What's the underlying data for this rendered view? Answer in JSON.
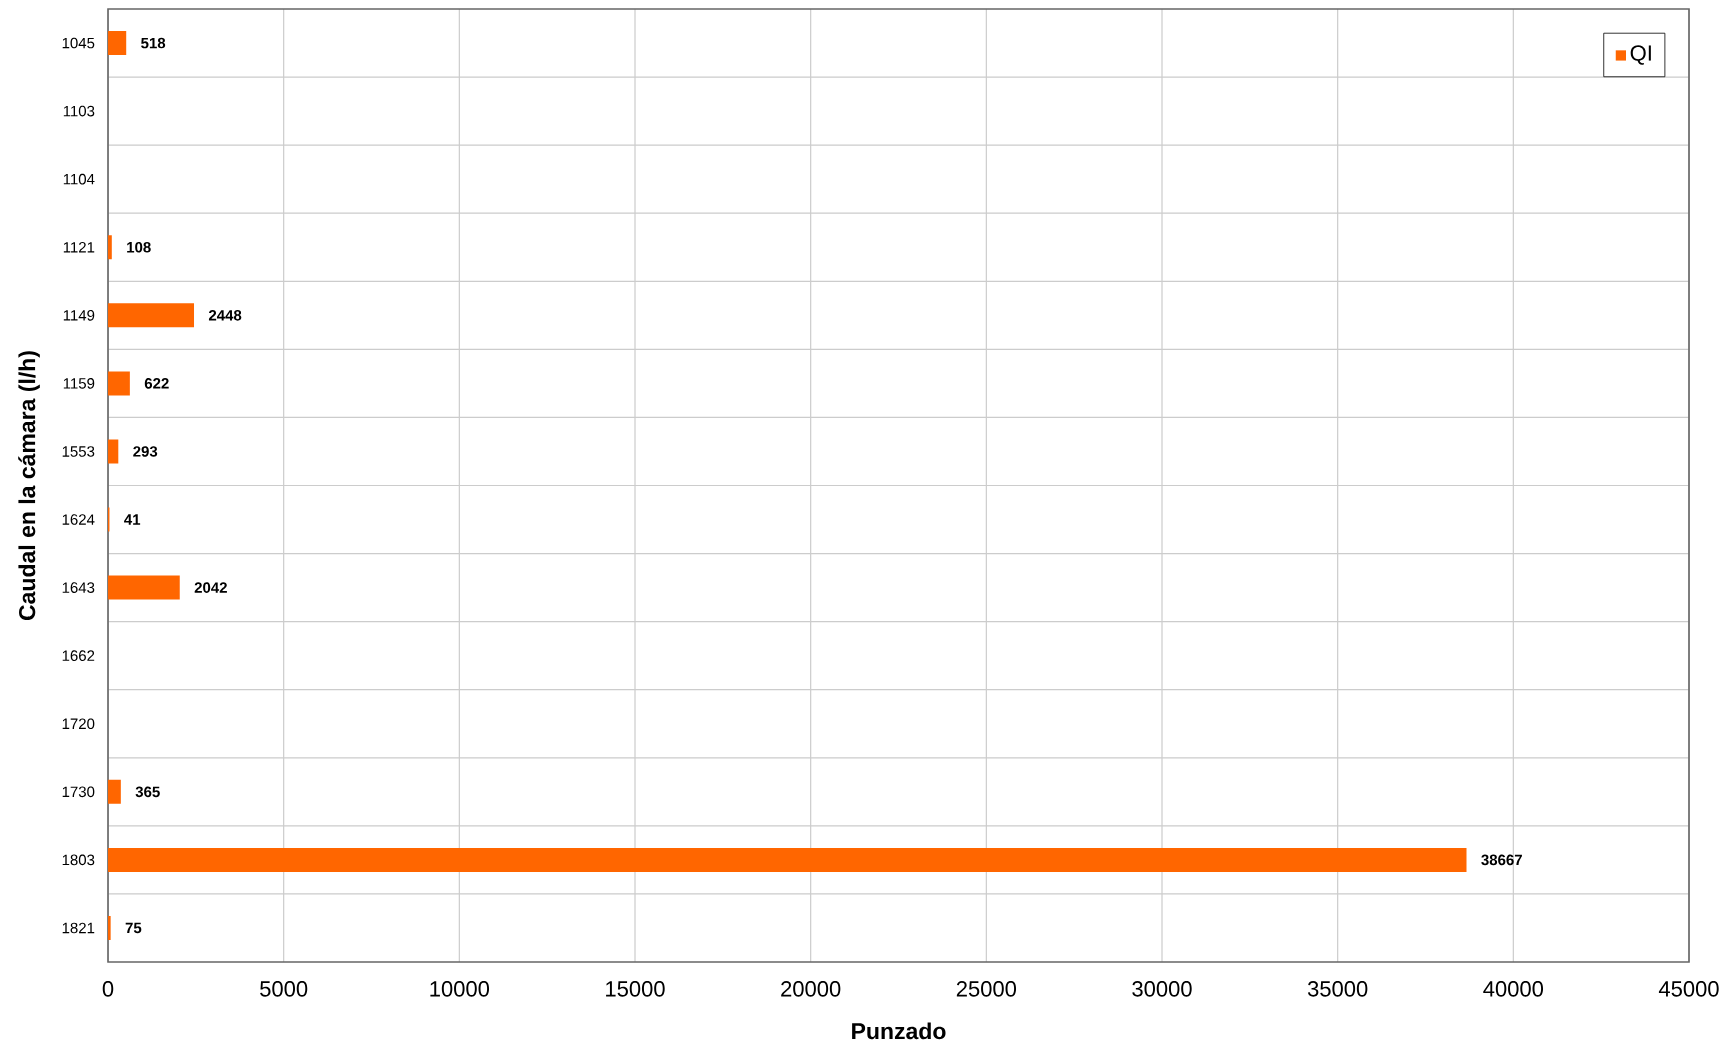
{
  "chart_data": {
    "type": "bar",
    "orientation": "horizontal",
    "xlabel": "Punzado",
    "ylabel": "Caudal en la cámara (l/h)",
    "categories": [
      "1045",
      "1103",
      "1104",
      "1121",
      "1149",
      "1159",
      "1553",
      "1624",
      "1643",
      "1662",
      "1720",
      "1730",
      "1803",
      "1821"
    ],
    "series": [
      {
        "name": "QI",
        "color": "#ff6600",
        "values": [
          518,
          null,
          null,
          108,
          2448,
          622,
          293,
          41,
          2042,
          null,
          null,
          365,
          38667,
          75
        ]
      }
    ],
    "xlim": [
      0,
      45000
    ],
    "xticks": [
      0,
      5000,
      10000,
      15000,
      20000,
      25000,
      30000,
      35000,
      40000,
      45000
    ],
    "grid": true,
    "legend": "top right",
    "data_labels": true
  }
}
